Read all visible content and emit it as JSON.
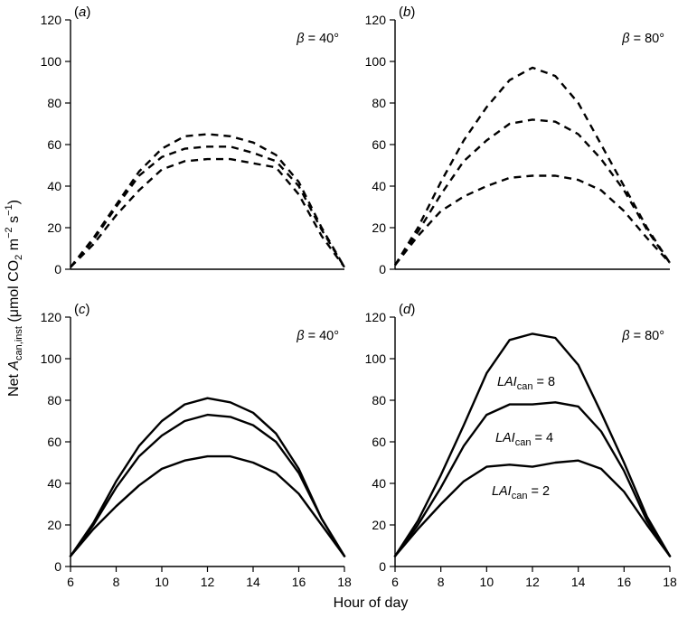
{
  "figure": {
    "xlabel": "Hour of day",
    "ylabel": {
      "prefix": "Net ",
      "a": "A",
      "a_sub": "can,inst",
      "unit_open": " (μmol CO",
      "two": "2",
      "unit_m": " m",
      "exp_m": "−2",
      "unit_s": " s",
      "exp_s": "−1",
      "close": ")"
    },
    "lai_label": {
      "italic": "LAI",
      "sub": "can",
      "eq": " = "
    }
  },
  "chart_data": [
    {
      "id": "a",
      "panel_label": "(a)",
      "annotation": "β = 40°",
      "type": "line",
      "line_style": "dashed",
      "xlim": [
        6,
        18
      ],
      "ylim": [
        0,
        120
      ],
      "yticks": [
        0,
        20,
        40,
        60,
        80,
        100,
        120
      ],
      "xticks": [],
      "series": [
        {
          "x": [
            6,
            7,
            8,
            9,
            10,
            11,
            12,
            13,
            14,
            15,
            16,
            17,
            18
          ],
          "values": [
            1,
            12,
            26,
            38,
            48,
            52,
            53,
            53,
            51,
            49,
            36,
            16,
            1
          ]
        },
        {
          "x": [
            6,
            7,
            8,
            9,
            10,
            11,
            12,
            13,
            14,
            15,
            16,
            17,
            18
          ],
          "values": [
            1,
            14,
            30,
            45,
            54,
            58,
            59,
            59,
            56,
            52,
            40,
            19,
            1
          ]
        },
        {
          "x": [
            6,
            7,
            8,
            9,
            10,
            11,
            12,
            13,
            14,
            15,
            16,
            17,
            18
          ],
          "values": [
            1,
            15,
            31,
            47,
            58,
            64,
            65,
            64,
            61,
            55,
            42,
            20,
            1
          ]
        }
      ]
    },
    {
      "id": "b",
      "panel_label": "(b)",
      "annotation": "β = 80°",
      "type": "line",
      "line_style": "dashed",
      "xlim": [
        6,
        18
      ],
      "ylim": [
        0,
        120
      ],
      "yticks": [
        0,
        20,
        40,
        60,
        80,
        100,
        120
      ],
      "xticks": [],
      "series": [
        {
          "x": [
            6,
            7,
            8,
            9,
            10,
            11,
            12,
            13,
            14,
            15,
            16,
            17,
            18
          ],
          "values": [
            2,
            16,
            28,
            35,
            40,
            44,
            45,
            45,
            43,
            38,
            28,
            15,
            3
          ]
        },
        {
          "x": [
            6,
            7,
            8,
            9,
            10,
            11,
            12,
            13,
            14,
            15,
            16,
            17,
            18
          ],
          "values": [
            2,
            18,
            36,
            52,
            62,
            70,
            72,
            71,
            65,
            53,
            38,
            19,
            3
          ]
        },
        {
          "x": [
            6,
            7,
            8,
            9,
            10,
            11,
            12,
            13,
            14,
            15,
            16,
            17,
            18
          ],
          "values": [
            2,
            20,
            42,
            62,
            78,
            91,
            97,
            93,
            80,
            60,
            40,
            20,
            3
          ]
        }
      ]
    },
    {
      "id": "c",
      "panel_label": "(c)",
      "annotation": "β = 40°",
      "type": "line",
      "line_style": "solid",
      "xlim": [
        6,
        18
      ],
      "ylim": [
        0,
        120
      ],
      "yticks": [
        0,
        20,
        40,
        60,
        80,
        100,
        120
      ],
      "xticks": [
        6,
        8,
        10,
        12,
        14,
        16,
        18
      ],
      "series": [
        {
          "x": [
            6,
            7,
            8,
            9,
            10,
            11,
            12,
            13,
            14,
            15,
            16,
            17,
            18
          ],
          "values": [
            5,
            18,
            29,
            39,
            47,
            51,
            53,
            53,
            50,
            45,
            35,
            20,
            5
          ]
        },
        {
          "x": [
            6,
            7,
            8,
            9,
            10,
            11,
            12,
            13,
            14,
            15,
            16,
            17,
            18
          ],
          "values": [
            5,
            20,
            38,
            53,
            63,
            70,
            73,
            72,
            68,
            60,
            45,
            23,
            5
          ]
        },
        {
          "x": [
            6,
            7,
            8,
            9,
            10,
            11,
            12,
            13,
            14,
            15,
            16,
            17,
            18
          ],
          "values": [
            5,
            21,
            41,
            58,
            70,
            78,
            81,
            79,
            74,
            64,
            47,
            23,
            5
          ]
        }
      ]
    },
    {
      "id": "d",
      "panel_label": "(d)",
      "annotation": "β = 80°",
      "type": "line",
      "line_style": "solid",
      "xlim": [
        6,
        18
      ],
      "ylim": [
        0,
        120
      ],
      "yticks": [
        0,
        20,
        40,
        60,
        80,
        100,
        120
      ],
      "xticks": [
        6,
        8,
        10,
        12,
        14,
        16,
        18
      ],
      "series": [
        {
          "name": "2",
          "x": [
            6,
            7,
            8,
            9,
            10,
            11,
            12,
            13,
            14,
            15,
            16,
            17,
            18
          ],
          "values": [
            5,
            18,
            30,
            41,
            48,
            49,
            48,
            50,
            51,
            47,
            36,
            20,
            5
          ]
        },
        {
          "name": "4",
          "x": [
            6,
            7,
            8,
            9,
            10,
            11,
            12,
            13,
            14,
            15,
            16,
            17,
            18
          ],
          "values": [
            5,
            20,
            38,
            58,
            73,
            78,
            78,
            79,
            77,
            65,
            46,
            22,
            5
          ]
        },
        {
          "name": "8",
          "x": [
            6,
            7,
            8,
            9,
            10,
            11,
            12,
            13,
            14,
            15,
            16,
            17,
            18
          ],
          "values": [
            5,
            22,
            44,
            68,
            93,
            109,
            112,
            110,
            97,
            74,
            50,
            24,
            5
          ]
        }
      ]
    }
  ]
}
